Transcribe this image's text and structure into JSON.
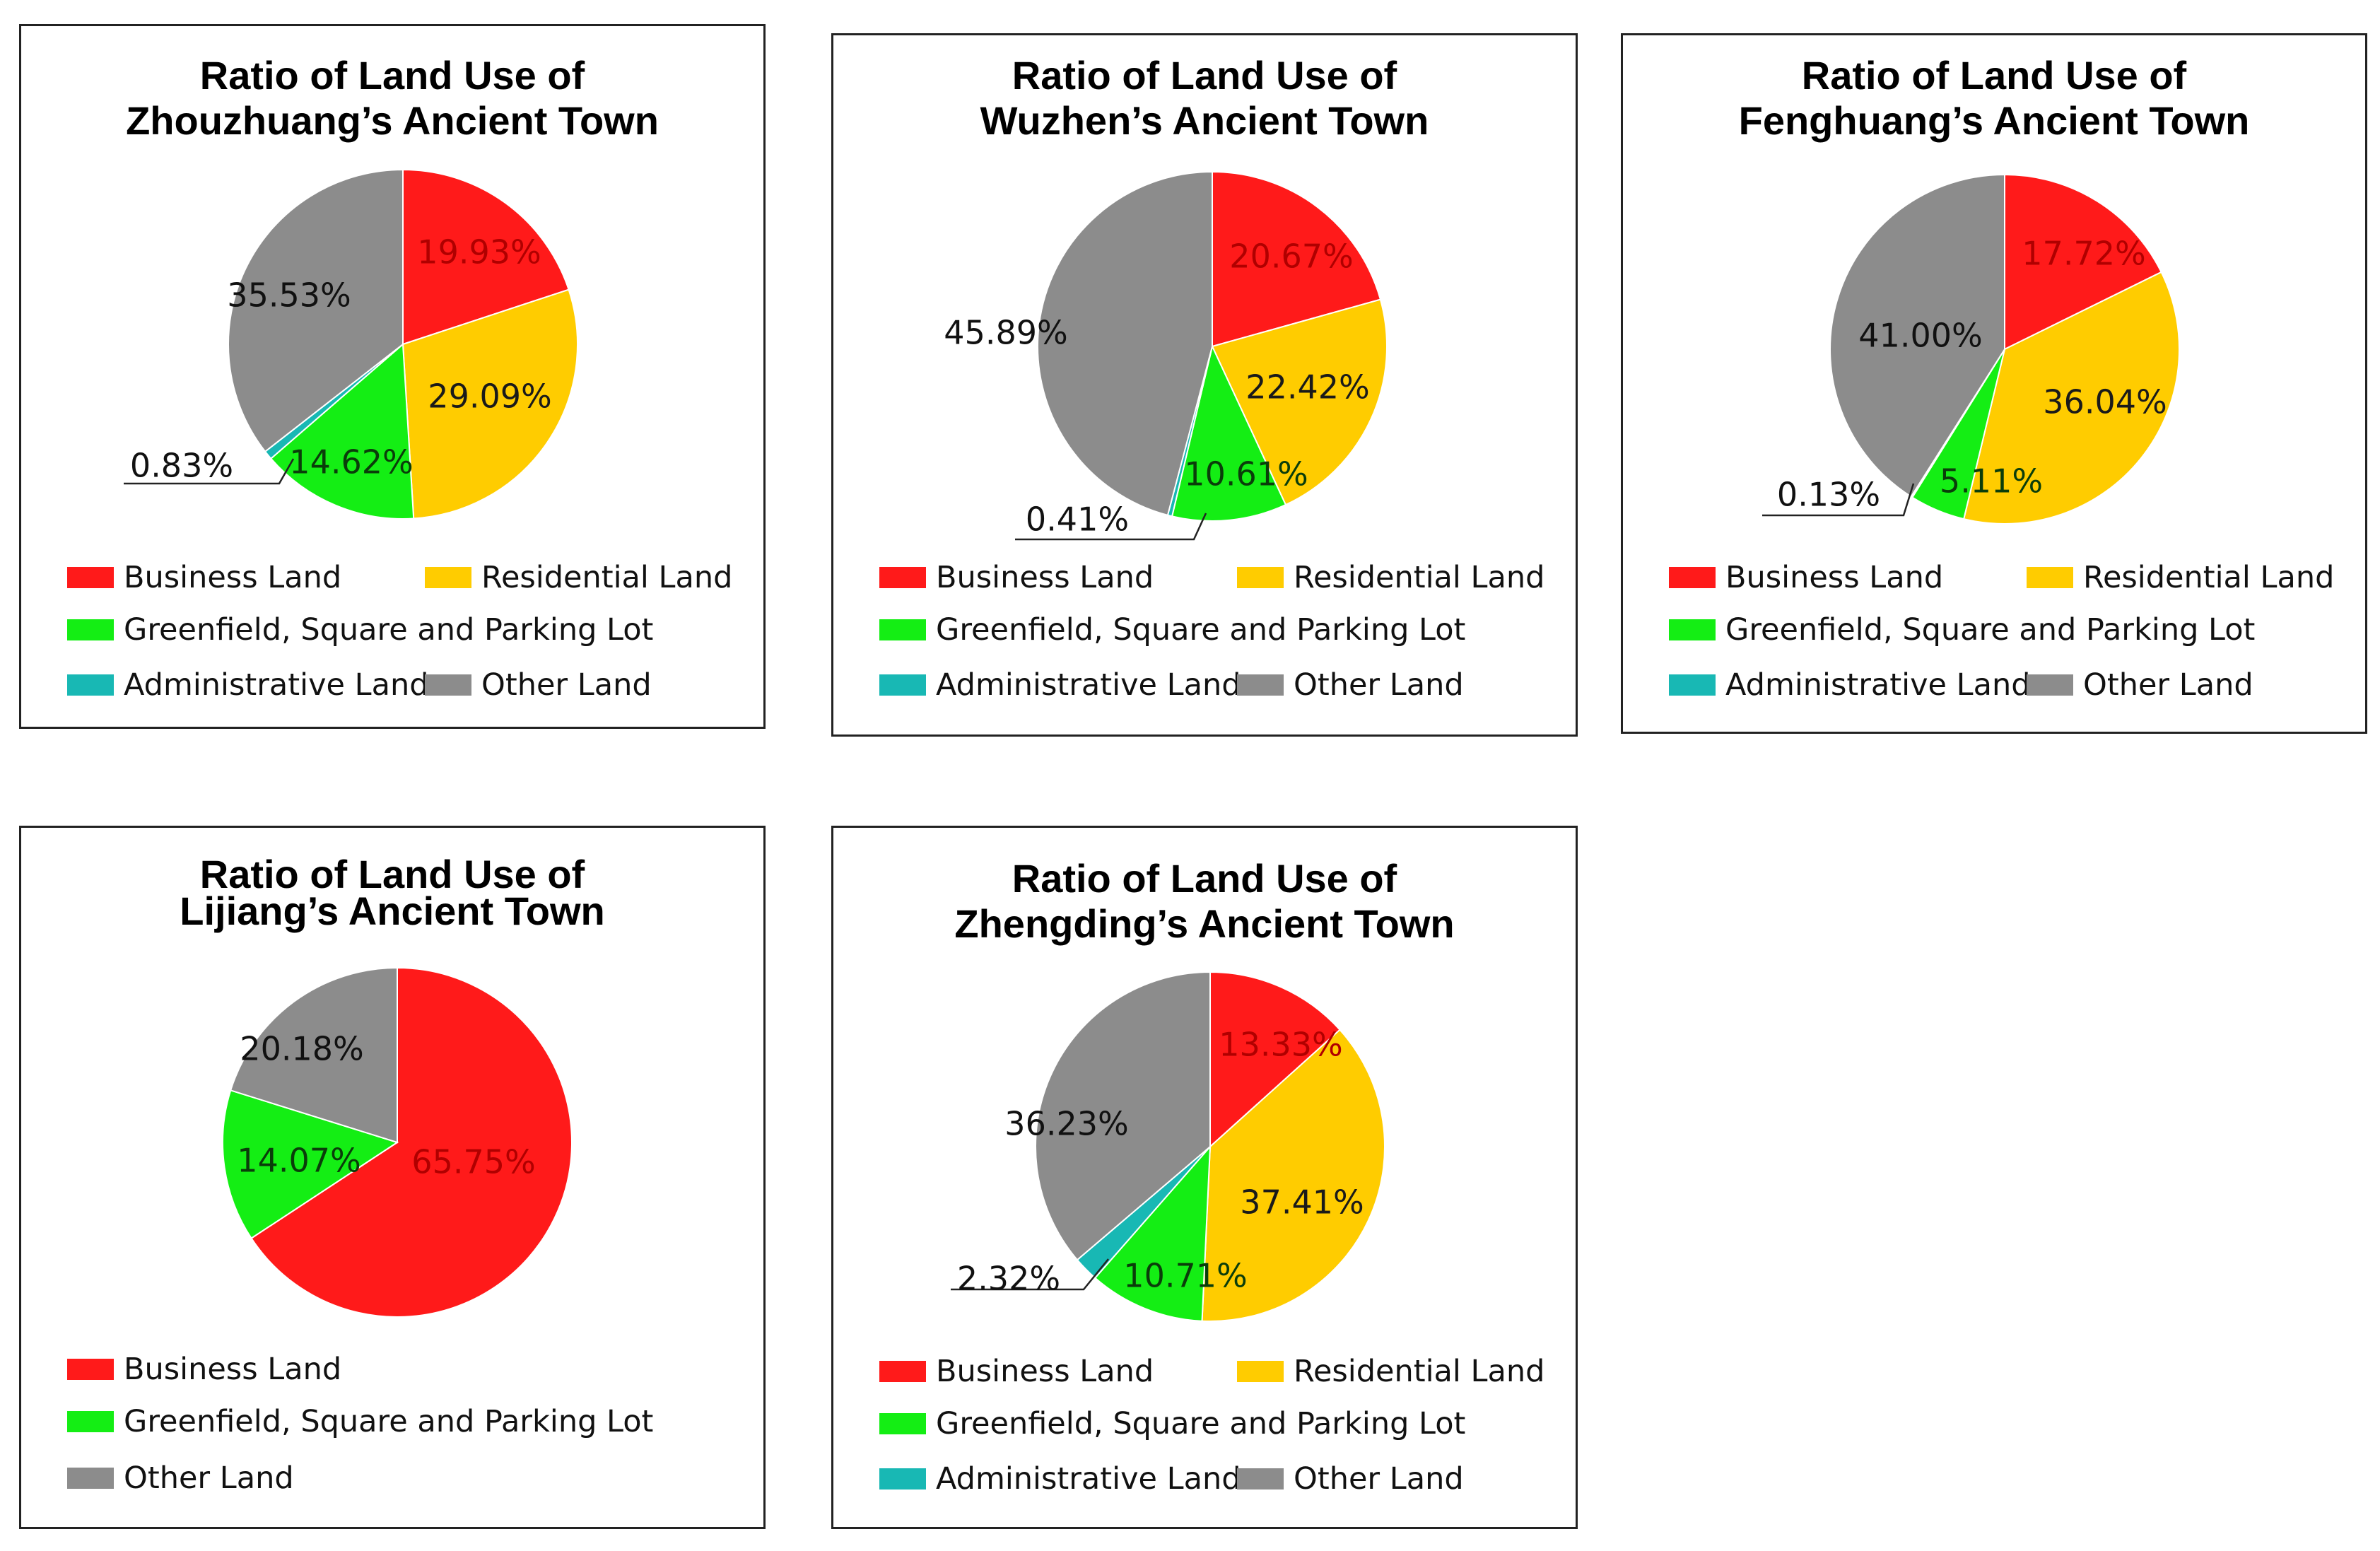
{
  "colors": {
    "business": "#ff1a1a",
    "residential": "#ffcc00",
    "green": "#14ee14",
    "admin": "#18b8b4",
    "other": "#8c8c8c"
  },
  "legend_labels": {
    "business": "Business Land",
    "residential": "Residential Land",
    "green": "Greenfield, Square  and Parking Lot",
    "admin": "Administrative Land",
    "other": "Other Land"
  },
  "chart_data": [
    {
      "type": "pie",
      "title_line1": "Ratio of Land Use of",
      "title_line2": "Zhouzhuang’s Ancient Town",
      "slices": [
        {
          "key": "business",
          "value": 19.93,
          "label": "19.93%"
        },
        {
          "key": "residential",
          "value": 29.09,
          "label": "29.09%"
        },
        {
          "key": "green",
          "value": 14.62,
          "label": "14.62%"
        },
        {
          "key": "admin",
          "value": 0.83,
          "label": "0.83%"
        },
        {
          "key": "other",
          "value": 35.53,
          "label": "35.53%"
        }
      ]
    },
    {
      "type": "pie",
      "title_line1": "Ratio of Land Use of",
      "title_line2": "Wuzhen’s Ancient Town",
      "slices": [
        {
          "key": "business",
          "value": 20.67,
          "label": "20.67%"
        },
        {
          "key": "residential",
          "value": 22.42,
          "label": "22.42%"
        },
        {
          "key": "green",
          "value": 10.61,
          "label": "10.61%"
        },
        {
          "key": "admin",
          "value": 0.41,
          "label": "0.41%"
        },
        {
          "key": "other",
          "value": 45.89,
          "label": "45.89%"
        }
      ]
    },
    {
      "type": "pie",
      "title_line1": "Ratio of Land Use of",
      "title_line2": "Fenghuang’s Ancient Town",
      "slices": [
        {
          "key": "business",
          "value": 17.72,
          "label": "17.72%"
        },
        {
          "key": "residential",
          "value": 36.04,
          "label": "36.04%"
        },
        {
          "key": "green",
          "value": 5.11,
          "label": "5.11%"
        },
        {
          "key": "admin",
          "value": 0.13,
          "label": "0.13%"
        },
        {
          "key": "other",
          "value": 41.0,
          "label": "41.00%"
        }
      ]
    },
    {
      "type": "pie",
      "title_line1": "Ratio of Land Use of",
      "title_line2": "Lijiang’s Ancient Town",
      "slices": [
        {
          "key": "business",
          "value": 65.75,
          "label": "65.75%"
        },
        {
          "key": "green",
          "value": 14.07,
          "label": "14.07%"
        },
        {
          "key": "other",
          "value": 20.18,
          "label": "20.18%"
        }
      ]
    },
    {
      "type": "pie",
      "title_line1": "Ratio of Land Use of",
      "title_line2": "Zhengding’s Ancient Town",
      "slices": [
        {
          "key": "business",
          "value": 13.33,
          "label": "13.33%"
        },
        {
          "key": "residential",
          "value": 37.41,
          "label": "37.41%"
        },
        {
          "key": "green",
          "value": 10.71,
          "label": "10.71%"
        },
        {
          "key": "admin",
          "value": 2.32,
          "label": "2.32%"
        },
        {
          "key": "other",
          "value": 36.23,
          "label": "36.23%"
        }
      ]
    }
  ]
}
